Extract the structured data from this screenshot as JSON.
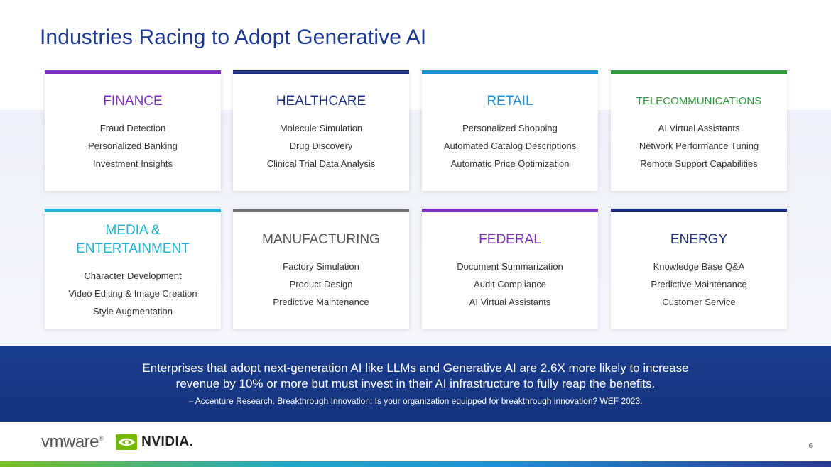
{
  "title": "Industries Racing to Adopt Generative AI",
  "cards": [
    {
      "heading": "FINANCE",
      "color": "#7b2fbe",
      "items": [
        "Fraud Detection",
        "Personalized Banking",
        "Investment Insights"
      ]
    },
    {
      "heading": "HEALTHCARE",
      "color": "#1f2f82",
      "items": [
        "Molecule Simulation",
        "Drug Discovery",
        "Clinical Trial Data Analysis"
      ]
    },
    {
      "heading": "RETAIL",
      "color": "#1f8fd6",
      "items": [
        "Personalized Shopping",
        "Automated Catalog Descriptions",
        "Automatic Price Optimization"
      ]
    },
    {
      "heading": "TELECOMMUNICATIONS",
      "color": "#2e9a3c",
      "items": [
        "AI Virtual Assistants",
        "Network Performance Tuning",
        "Remote Support Capabilities"
      ]
    },
    {
      "heading": "MEDIA & ENTERTAINMENT",
      "color": "#1fb4d4",
      "items": [
        "Character Development",
        "Video Editing & Image Creation",
        "Style Augmentation"
      ]
    },
    {
      "heading": "MANUFACTURING",
      "color": "#6b6b6b",
      "items": [
        "Factory Simulation",
        "Product Design",
        "Predictive Maintenance"
      ]
    },
    {
      "heading": "FEDERAL",
      "color": "#7b2fbe",
      "items": [
        "Document Summarization",
        "Audit Compliance",
        "AI Virtual Assistants"
      ]
    },
    {
      "heading": "ENERGY",
      "color": "#1f2f82",
      "items": [
        "Knowledge Base Q&A",
        "Predictive Maintenance",
        "Customer Service"
      ]
    }
  ],
  "banner": {
    "quote": "Enterprises that adopt next-generation AI like LLMs and Generative AI are 2.6X more likely to increase revenue by 10% or more but must invest in their AI infrastructure to fully reap the benefits.",
    "source": "– Accenture Research. Breakthrough Innovation: Is your organization equipped for breakthrough innovation? WEF 2023."
  },
  "logos": {
    "vmware": "vmware",
    "nvidia": "NVIDIA."
  },
  "page_number": "6"
}
